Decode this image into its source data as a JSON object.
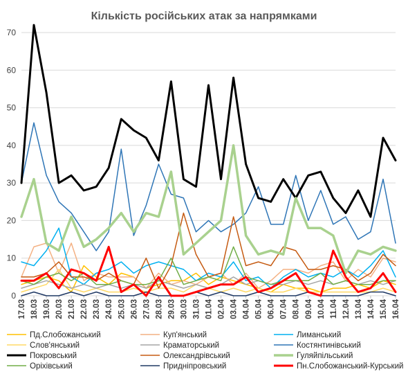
{
  "chart_data": {
    "type": "line",
    "title": "Кількість російських атак за напрямками",
    "xlabel": "",
    "ylabel": "",
    "ylim": [
      0,
      70
    ],
    "yticks": [
      0,
      10,
      20,
      30,
      40,
      50,
      60,
      70
    ],
    "grid": true,
    "legend_position": "bottom",
    "categories": [
      "17.03",
      "18.03",
      "19.03",
      "20.03",
      "21.03",
      "22.03",
      "23.03",
      "24.03",
      "25.03",
      "26.03",
      "27.03",
      "28.03",
      "29.03",
      "30.03",
      "31.03",
      "01.04",
      "02.04",
      "03.04",
      "04.04",
      "05.04",
      "06.04",
      "07.04",
      "08.04",
      "09.04",
      "10.04",
      "11.04",
      "12.04",
      "13.04",
      "14.04",
      "15.04",
      "16.04"
    ],
    "series": [
      {
        "name": "Пд.Слобожанський",
        "color": "#ffc000",
        "width": 1.5,
        "values": [
          3,
          4,
          5,
          4,
          1,
          8,
          5,
          3,
          6,
          5,
          2,
          3,
          4,
          4,
          6,
          3,
          5,
          4,
          3,
          2,
          1,
          3,
          2,
          2,
          1,
          2,
          2,
          3,
          2,
          4,
          3
        ]
      },
      {
        "name": "Куп'янський",
        "color": "#f4b183",
        "width": 1.5,
        "values": [
          5,
          13,
          14,
          6,
          14,
          4,
          6,
          5,
          5,
          5,
          2,
          6,
          3,
          4,
          3,
          5,
          6,
          3,
          6,
          2,
          4,
          7,
          7,
          6,
          8,
          9,
          4,
          7,
          5,
          10,
          9
        ]
      },
      {
        "name": "Лиманський",
        "color": "#00b0f0",
        "width": 1.5,
        "values": [
          9,
          8,
          12,
          18,
          5,
          3,
          6,
          7,
          9,
          6,
          8,
          9,
          8,
          7,
          4,
          6,
          5,
          9,
          4,
          5,
          2,
          5,
          7,
          5,
          6,
          5,
          7,
          5,
          8,
          12,
          5
        ]
      },
      {
        "name": "Слов'янський",
        "color": "#ffd966",
        "width": 1.5,
        "values": [
          1,
          2,
          3,
          7,
          2,
          1,
          2,
          1,
          1,
          2,
          1,
          2,
          2,
          1,
          3,
          2,
          1,
          2,
          1,
          2,
          1,
          1,
          2,
          1,
          1,
          1,
          1,
          1,
          1,
          2,
          1
        ]
      },
      {
        "name": "Краматорський",
        "color": "#a5a5a5",
        "width": 1.5,
        "values": [
          2,
          3,
          4,
          3,
          2,
          3,
          2,
          3,
          2,
          3,
          2,
          4,
          3,
          2,
          3,
          2,
          3,
          5,
          3,
          4,
          3,
          3,
          4,
          3,
          4,
          3,
          4,
          3,
          4,
          3,
          4
        ]
      },
      {
        "name": "Костянтинівський",
        "color": "#2e75b6",
        "width": 1.5,
        "values": [
          30,
          46,
          32,
          25,
          22,
          17,
          12,
          17,
          39,
          16,
          24,
          35,
          27,
          26,
          17,
          20,
          17,
          19,
          22,
          29,
          19,
          19,
          32,
          20,
          28,
          19,
          21,
          15,
          17,
          31,
          14
        ]
      },
      {
        "name": "Покровський",
        "color": "#000000",
        "width": 3,
        "values": [
          30,
          72,
          54,
          30,
          32,
          28,
          29,
          34,
          47,
          44,
          42,
          36,
          57,
          31,
          29,
          56,
          31,
          58,
          35,
          26,
          25,
          31,
          26,
          32,
          33,
          26,
          22,
          28,
          21,
          42,
          36
        ]
      },
      {
        "name": "Олександрівський",
        "color": "#c55a11",
        "width": 1.5,
        "values": [
          5,
          5,
          6,
          9,
          5,
          5,
          4,
          6,
          4,
          3,
          10,
          2,
          8,
          22,
          11,
          5,
          6,
          21,
          8,
          9,
          8,
          13,
          12,
          7,
          7,
          8,
          7,
          4,
          6,
          11,
          8
        ]
      },
      {
        "name": "Гуляйпільський",
        "color": "#a9d18e",
        "width": 3.5,
        "values": [
          21,
          31,
          14,
          12,
          21,
          13,
          15,
          18,
          22,
          17,
          22,
          21,
          33,
          11,
          14,
          17,
          20,
          40,
          16,
          11,
          12,
          11,
          26,
          18,
          18,
          16,
          6,
          12,
          11,
          13,
          12
        ]
      },
      {
        "name": "Оріхівський",
        "color": "#70ad47",
        "width": 1.5,
        "values": [
          4,
          3,
          5,
          6,
          4,
          6,
          3,
          3,
          4,
          3,
          3,
          4,
          10,
          3,
          4,
          5,
          4,
          13,
          5,
          4,
          3,
          4,
          4,
          4,
          6,
          3,
          4,
          3,
          3,
          4,
          4
        ]
      },
      {
        "name": "Придніпровський",
        "color": "#1f3864",
        "width": 1.5,
        "values": [
          0,
          1,
          0,
          0,
          1,
          0,
          1,
          0,
          0,
          0,
          1,
          0,
          0,
          0,
          1,
          0,
          1,
          0,
          0,
          1,
          0,
          0,
          0,
          1,
          0,
          0,
          0,
          0,
          1,
          1,
          0
        ]
      },
      {
        "name": "Пн.Слобожанський-Курський",
        "color": "#ff0000",
        "width": 3,
        "values": [
          4,
          4,
          6,
          2,
          7,
          6,
          4,
          13,
          1,
          3,
          0,
          5,
          0,
          0,
          1,
          2,
          3,
          3,
          5,
          1,
          2,
          4,
          6,
          1,
          0,
          12,
          5,
          1,
          2,
          6,
          1
        ]
      }
    ]
  }
}
